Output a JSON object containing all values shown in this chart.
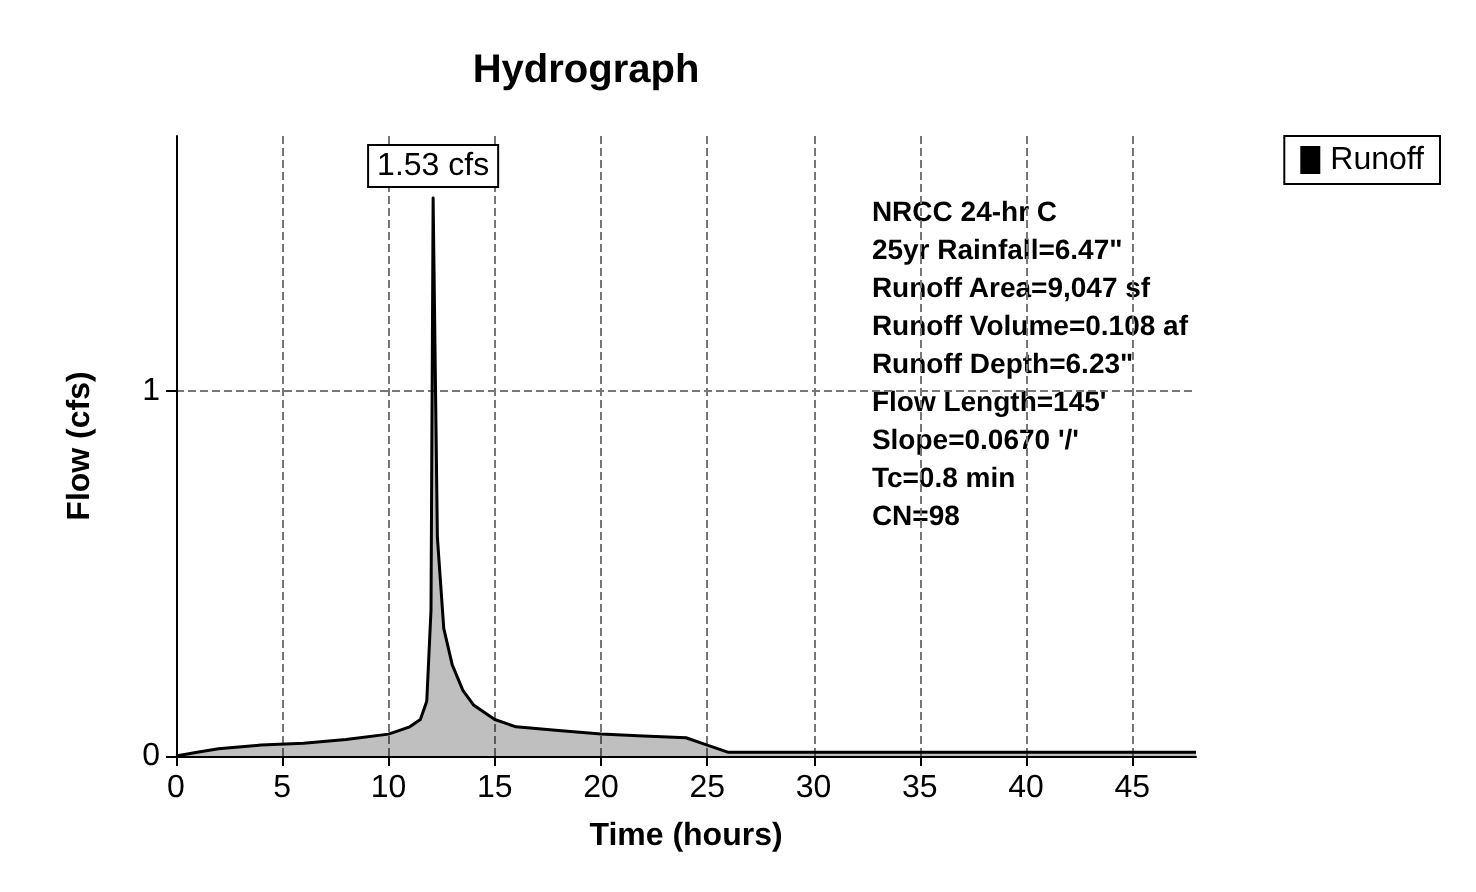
{
  "chart_data": {
    "type": "area",
    "title": "Hydrograph",
    "xlabel": "Time (hours)",
    "ylabel": "Flow (cfs)",
    "x": [
      0,
      1,
      2,
      4,
      6,
      8,
      10,
      11,
      11.5,
      11.8,
      12,
      12.1,
      12.3,
      12.6,
      13,
      13.5,
      14,
      15,
      16,
      18,
      20,
      22,
      24,
      25,
      26,
      30,
      35,
      40,
      45,
      48
    ],
    "series": [
      {
        "name": "Runoff",
        "color": "#000000",
        "values": [
          0,
          0.01,
          0.02,
          0.03,
          0.035,
          0.045,
          0.06,
          0.08,
          0.1,
          0.15,
          0.4,
          1.53,
          0.6,
          0.35,
          0.25,
          0.18,
          0.14,
          0.1,
          0.08,
          0.07,
          0.06,
          0.055,
          0.05,
          0.03,
          0.01,
          0.01,
          0.01,
          0.01,
          0.01,
          0.01
        ]
      }
    ],
    "xlim": [
      0,
      48
    ],
    "ylim": [
      0,
      1.7
    ],
    "xticks": [
      0,
      5,
      10,
      15,
      20,
      25,
      30,
      35,
      40,
      45
    ],
    "yticks": [
      0,
      1
    ],
    "grid": true,
    "legend": "top right",
    "marker": "none",
    "line_style": "solid",
    "annotations": [
      {
        "text": "1.53 cfs",
        "x": 12.1,
        "y": 1.53
      },
      "NRCC 24-hr C",
      "25yr Rainfall=6.47\"",
      "Runoff Area=9,047 sf",
      "Runoff Volume=0.108 af",
      "Runoff Depth=6.23\"",
      "Flow Length=145'",
      "Slope=0.0670 '/'",
      "Tc=0.8 min",
      "CN=98"
    ]
  }
}
